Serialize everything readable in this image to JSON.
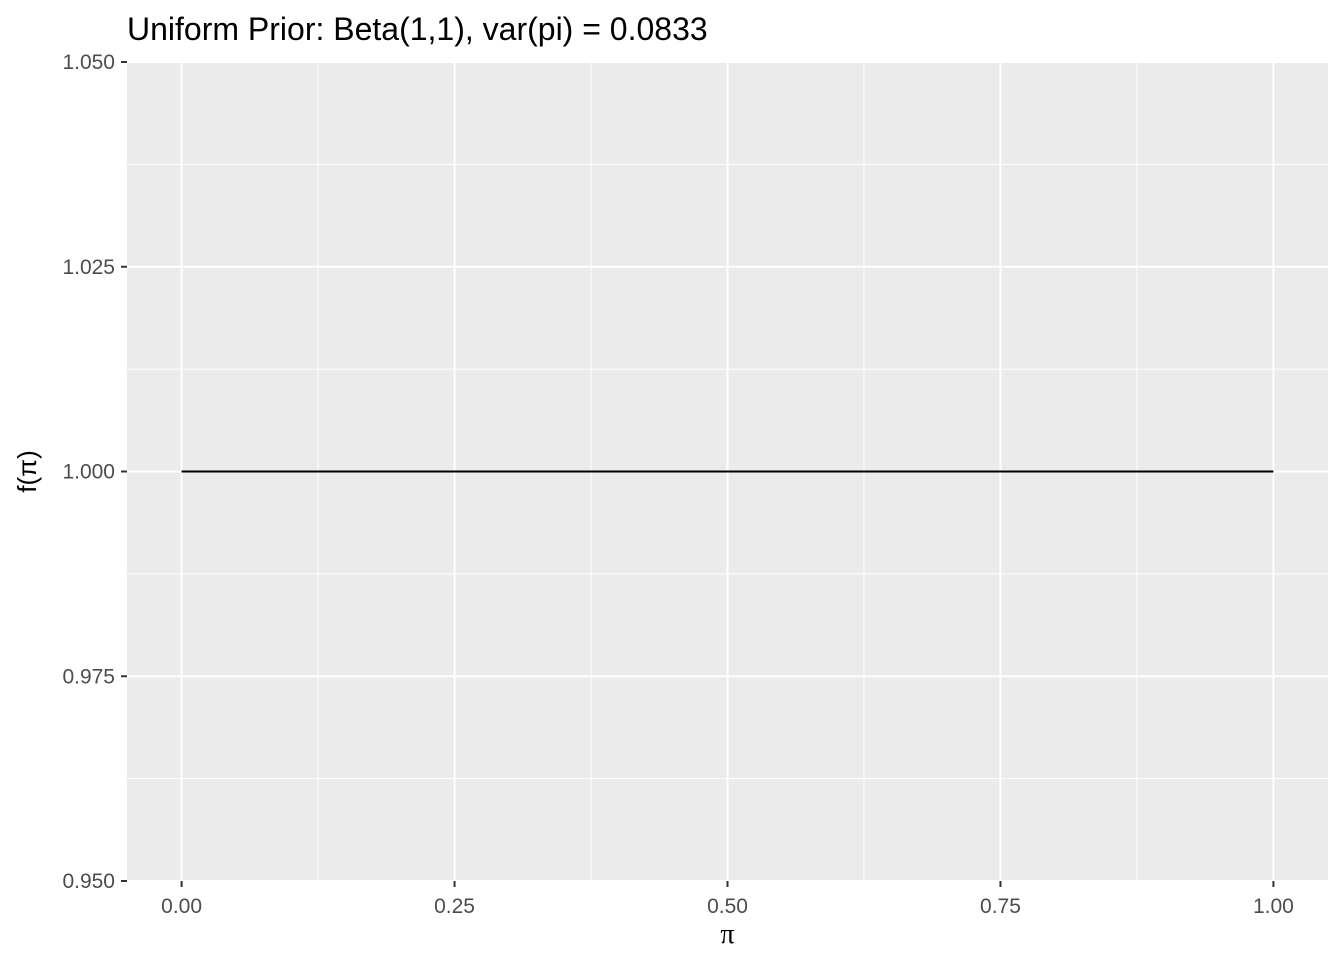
{
  "chart_data": {
    "type": "line",
    "title": "Uniform Prior: Beta(1,1), var(pi) = 0.0833",
    "xlabel": "π",
    "ylabel": "f(π)",
    "xlim": [
      -0.05,
      1.05
    ],
    "ylim": [
      0.95,
      1.05
    ],
    "x_ticks": [
      0.0,
      0.25,
      0.5,
      0.75,
      1.0
    ],
    "x_tick_labels": [
      "0.00",
      "0.25",
      "0.50",
      "0.75",
      "1.00"
    ],
    "x_minor_ticks": [
      0.125,
      0.375,
      0.625,
      0.875
    ],
    "y_ticks": [
      0.95,
      0.975,
      1.0,
      1.025,
      1.05
    ],
    "y_tick_labels": [
      "0.950",
      "0.975",
      "1.000",
      "1.025",
      "1.050"
    ],
    "y_minor_ticks": [
      0.9625,
      0.9875,
      1.0125,
      1.0375
    ],
    "grid": true,
    "series": [
      {
        "x": [
          0.0,
          0.25,
          0.5,
          0.75,
          1.0
        ],
        "values": [
          1.0,
          1.0,
          1.0,
          1.0,
          1.0
        ]
      }
    ],
    "colors": {
      "panel_background": "#EBEBEB",
      "grid_line": "#FFFFFF",
      "line": "#000000",
      "tick_mark": "#333333"
    }
  }
}
